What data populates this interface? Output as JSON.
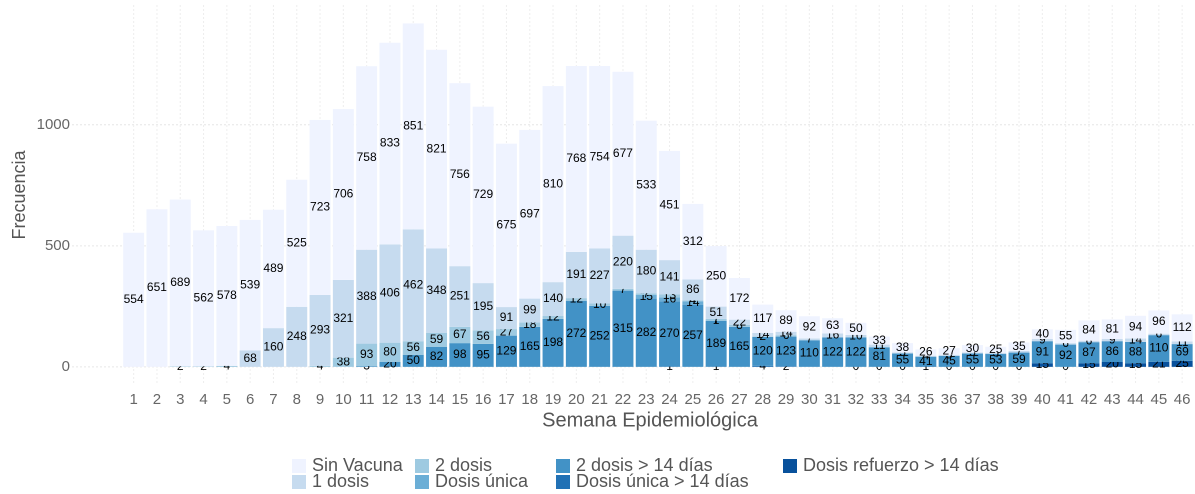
{
  "chart_data": {
    "type": "stacked_bar",
    "x_label": "Semana Epidemiológica",
    "y_label": "Frecuencia",
    "categories": [
      "1",
      "2",
      "3",
      "4",
      "5",
      "6",
      "7",
      "8",
      "9",
      "10",
      "11",
      "12",
      "13",
      "14",
      "15",
      "16",
      "17",
      "18",
      "19",
      "20",
      "21",
      "22",
      "23",
      "24",
      "25",
      "26",
      "27",
      "28",
      "29",
      "30",
      "31",
      "32",
      "33",
      "34",
      "35",
      "36",
      "37",
      "38",
      "39",
      "40",
      "41",
      "42",
      "43",
      "44",
      "45",
      "46"
    ],
    "ylim": [
      -75,
      1495
    ],
    "yticks": [
      0,
      500,
      1000
    ],
    "grid": true,
    "legend": "bottom",
    "series": [
      {
        "name": "Sin Vacuna",
        "color": "#eff3ff",
        "values": [
          554,
          651,
          689,
          562,
          578,
          539,
          489,
          525,
          723,
          706,
          758,
          833,
          851,
          821,
          756,
          729,
          675,
          697,
          810,
          768,
          754,
          677,
          533,
          451,
          312,
          250,
          172,
          117,
          89,
          92,
          63,
          50,
          33,
          38,
          26,
          27,
          30,
          25,
          35,
          40,
          55,
          84,
          81,
          94,
          96,
          112
        ]
      },
      {
        "name": "1 dosis",
        "color": "#c6dbef",
        "values": [
          null,
          null,
          null,
          null,
          null,
          68,
          160,
          248,
          293,
          321,
          388,
          406,
          462,
          348,
          251,
          195,
          91,
          99,
          140,
          191,
          227,
          220,
          180,
          141,
          86,
          51,
          22,
          14,
          14,
          7,
          16,
          10,
          11,
          5,
          4,
          5,
          5,
          5,
          7,
          9,
          6,
          6,
          9,
          14,
          6,
          11
        ]
      },
      {
        "name": "2 dosis",
        "color": "#9ecae1",
        "values": [
          null,
          null,
          2,
          2,
          4,
          null,
          null,
          null,
          4,
          38,
          93,
          80,
          56,
          59,
          67,
          56,
          27,
          18,
          12,
          12,
          10,
          7,
          7,
          13,
          4,
          7,
          8,
          2,
          6,
          null,
          null,
          null,
          null,
          null,
          null,
          null,
          null,
          null,
          null,
          null,
          null,
          null,
          null,
          null,
          null,
          null
        ]
      },
      {
        "name": "Dosis única",
        "color": "#6baed6",
        "values": [
          null,
          null,
          null,
          null,
          null,
          null,
          null,
          null,
          null,
          null,
          null,
          null,
          null,
          null,
          null,
          null,
          null,
          null,
          null,
          null,
          null,
          null,
          15,
          16,
          14,
          1,
          null,
          null,
          null,
          null,
          null,
          null,
          null,
          null,
          null,
          null,
          null,
          null,
          null,
          null,
          null,
          null,
          null,
          null,
          null,
          null
        ]
      },
      {
        "name": "2 dosis > 14 días",
        "color": "#4292c6",
        "values": [
          null,
          null,
          null,
          null,
          null,
          null,
          null,
          null,
          null,
          null,
          3,
          20,
          50,
          82,
          98,
          95,
          129,
          165,
          198,
          272,
          252,
          315,
          282,
          270,
          257,
          189,
          165,
          120,
          123,
          110,
          122,
          122,
          81,
          55,
          41,
          45,
          55,
          53,
          59,
          91,
          92,
          87,
          86,
          88,
          110,
          69
        ]
      },
      {
        "name": "Dosis única > 14 días",
        "color": "#2171b5",
        "values": [
          null,
          null,
          null,
          null,
          null,
          null,
          null,
          null,
          null,
          null,
          null,
          null,
          null,
          null,
          null,
          null,
          null,
          null,
          null,
          null,
          null,
          null,
          null,
          1,
          null,
          1,
          null,
          4,
          2,
          null,
          null,
          null,
          null,
          null,
          null,
          null,
          null,
          null,
          null,
          null,
          null,
          null,
          null,
          null,
          null,
          null
        ]
      },
      {
        "name": "Dosis refuerzo > 14 días",
        "color": "#08519c",
        "values": [
          null,
          null,
          null,
          null,
          null,
          null,
          null,
          null,
          null,
          null,
          null,
          null,
          null,
          null,
          null,
          null,
          null,
          null,
          null,
          null,
          null,
          null,
          null,
          null,
          null,
          null,
          null,
          null,
          null,
          null,
          null,
          0,
          0,
          0,
          1,
          0,
          0,
          0,
          0,
          15,
          0,
          15,
          20,
          15,
          21,
          25
        ]
      }
    ]
  }
}
